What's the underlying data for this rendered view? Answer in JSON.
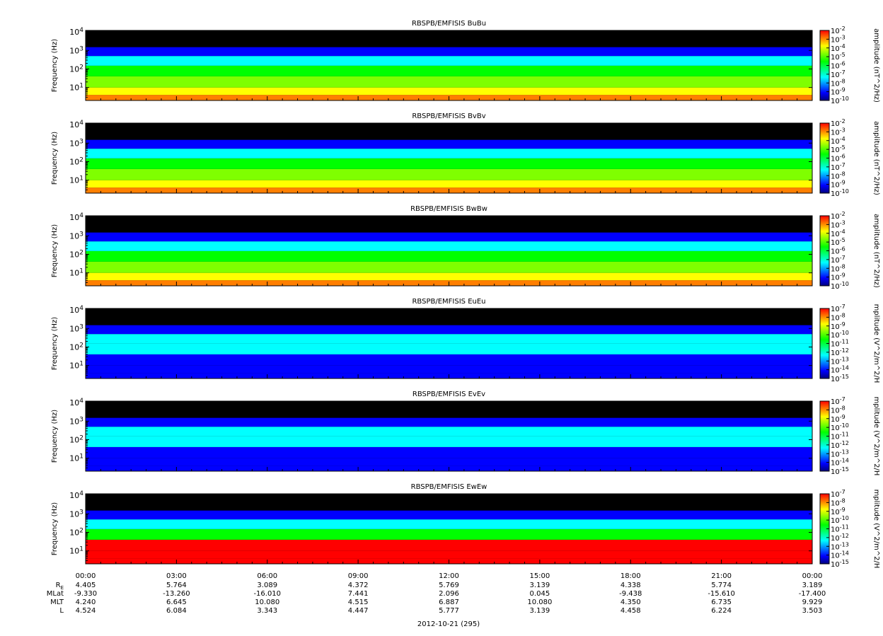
{
  "figure": {
    "date_label": "2012-10-21 (295)"
  },
  "colors": {
    "background": "#000000",
    "palette": [
      "#00007f",
      "#0000ff",
      "#007fff",
      "#00ffff",
      "#00ff7f",
      "#00ff00",
      "#7fff00",
      "#ffff00",
      "#ff7f00",
      "#ff0000"
    ]
  },
  "chart_data": [
    {
      "type": "heatmap",
      "title": "RBSPB/EMFISIS  BuBu",
      "ylabel": "Frequency (Hz)",
      "yscale": "log",
      "ylim": [
        2,
        12000
      ],
      "y_ticks": [
        {
          "label": "10",
          "exp": "1",
          "value": 10
        },
        {
          "label": "10",
          "exp": "2",
          "value": 100
        },
        {
          "label": "10",
          "exp": "3",
          "value": 1000
        },
        {
          "label": "10",
          "exp": "4",
          "value": 10000
        }
      ],
      "colorbar_label": "amplitude (nT^2/Hz)",
      "colorbar_scale": "log",
      "colorbar_range": [
        -10,
        -2
      ],
      "colorbar_ticks": [
        {
          "label": "10",
          "exp": "-2"
        },
        {
          "label": "10",
          "exp": "-3"
        },
        {
          "label": "10",
          "exp": "-4"
        },
        {
          "label": "10",
          "exp": "-5"
        },
        {
          "label": "10",
          "exp": "-6"
        },
        {
          "label": "10",
          "exp": "-7"
        },
        {
          "label": "10",
          "exp": "-8"
        },
        {
          "label": "10",
          "exp": "-9"
        },
        {
          "label": "10",
          "exp": "-10"
        }
      ]
    },
    {
      "type": "heatmap",
      "title": "RBSPB/EMFISIS  BvBv",
      "ylabel": "Frequency (Hz)",
      "yscale": "log",
      "ylim": [
        2,
        12000
      ],
      "y_ticks": [
        {
          "label": "10",
          "exp": "1",
          "value": 10
        },
        {
          "label": "10",
          "exp": "2",
          "value": 100
        },
        {
          "label": "10",
          "exp": "3",
          "value": 1000
        },
        {
          "label": "10",
          "exp": "4",
          "value": 10000
        }
      ],
      "colorbar_label": "amplitude (nT^2/Hz)",
      "colorbar_scale": "log",
      "colorbar_range": [
        -10,
        -2
      ],
      "colorbar_ticks": [
        {
          "label": "10",
          "exp": "-2"
        },
        {
          "label": "10",
          "exp": "-3"
        },
        {
          "label": "10",
          "exp": "-4"
        },
        {
          "label": "10",
          "exp": "-5"
        },
        {
          "label": "10",
          "exp": "-6"
        },
        {
          "label": "10",
          "exp": "-7"
        },
        {
          "label": "10",
          "exp": "-8"
        },
        {
          "label": "10",
          "exp": "-9"
        },
        {
          "label": "10",
          "exp": "-10"
        }
      ]
    },
    {
      "type": "heatmap",
      "title": "RBSPB/EMFISIS  BwBw",
      "ylabel": "Frequency (Hz)",
      "yscale": "log",
      "ylim": [
        2,
        12000
      ],
      "y_ticks": [
        {
          "label": "10",
          "exp": "1",
          "value": 10
        },
        {
          "label": "10",
          "exp": "2",
          "value": 100
        },
        {
          "label": "10",
          "exp": "3",
          "value": 1000
        },
        {
          "label": "10",
          "exp": "4",
          "value": 10000
        }
      ],
      "colorbar_label": "amplitude (nT^2/Hz)",
      "colorbar_scale": "log",
      "colorbar_range": [
        -10,
        -2
      ],
      "colorbar_ticks": [
        {
          "label": "10",
          "exp": "-2"
        },
        {
          "label": "10",
          "exp": "-3"
        },
        {
          "label": "10",
          "exp": "-4"
        },
        {
          "label": "10",
          "exp": "-5"
        },
        {
          "label": "10",
          "exp": "-6"
        },
        {
          "label": "10",
          "exp": "-7"
        },
        {
          "label": "10",
          "exp": "-8"
        },
        {
          "label": "10",
          "exp": "-9"
        },
        {
          "label": "10",
          "exp": "-10"
        }
      ]
    },
    {
      "type": "heatmap",
      "title": "RBSPB/EMFISIS  EuEu",
      "ylabel": "Frequency (Hz)",
      "yscale": "log",
      "ylim": [
        2,
        12000
      ],
      "y_ticks": [
        {
          "label": "10",
          "exp": "1",
          "value": 10
        },
        {
          "label": "10",
          "exp": "2",
          "value": 100
        },
        {
          "label": "10",
          "exp": "3",
          "value": 1000
        },
        {
          "label": "10",
          "exp": "4",
          "value": 10000
        }
      ],
      "colorbar_label": "mplitude (V^2/m^2/H",
      "colorbar_scale": "log",
      "colorbar_range": [
        -15,
        -7
      ],
      "colorbar_ticks": [
        {
          "label": "10",
          "exp": "-7"
        },
        {
          "label": "10",
          "exp": "-8"
        },
        {
          "label": "10",
          "exp": "-9"
        },
        {
          "label": "10",
          "exp": "-10"
        },
        {
          "label": "10",
          "exp": "-11"
        },
        {
          "label": "10",
          "exp": "-12"
        },
        {
          "label": "10",
          "exp": "-13"
        },
        {
          "label": "10",
          "exp": "-14"
        },
        {
          "label": "10",
          "exp": "-15"
        }
      ]
    },
    {
      "type": "heatmap",
      "title": "RBSPB/EMFISIS  EvEv",
      "ylabel": "Frequency (Hz)",
      "yscale": "log",
      "ylim": [
        2,
        12000
      ],
      "y_ticks": [
        {
          "label": "10",
          "exp": "1",
          "value": 10
        },
        {
          "label": "10",
          "exp": "2",
          "value": 100
        },
        {
          "label": "10",
          "exp": "3",
          "value": 1000
        },
        {
          "label": "10",
          "exp": "4",
          "value": 10000
        }
      ],
      "colorbar_label": "mplitude (V^2/m^2/H",
      "colorbar_scale": "log",
      "colorbar_range": [
        -15,
        -7
      ],
      "colorbar_ticks": [
        {
          "label": "10",
          "exp": "-7"
        },
        {
          "label": "10",
          "exp": "-8"
        },
        {
          "label": "10",
          "exp": "-9"
        },
        {
          "label": "10",
          "exp": "-10"
        },
        {
          "label": "10",
          "exp": "-11"
        },
        {
          "label": "10",
          "exp": "-12"
        },
        {
          "label": "10",
          "exp": "-13"
        },
        {
          "label": "10",
          "exp": "-14"
        },
        {
          "label": "10",
          "exp": "-15"
        }
      ]
    },
    {
      "type": "heatmap",
      "title": "RBSPB/EMFISIS  EwEw",
      "ylabel": "Frequency (Hz)",
      "yscale": "log",
      "ylim": [
        2,
        12000
      ],
      "y_ticks": [
        {
          "label": "10",
          "exp": "1",
          "value": 10
        },
        {
          "label": "10",
          "exp": "2",
          "value": 100
        },
        {
          "label": "10",
          "exp": "3",
          "value": 1000
        },
        {
          "label": "10",
          "exp": "4",
          "value": 10000
        }
      ],
      "colorbar_label": "mplitude (V^2/m^2/H",
      "colorbar_scale": "log",
      "colorbar_range": [
        -15,
        -7
      ],
      "colorbar_ticks": [
        {
          "label": "10",
          "exp": "-7"
        },
        {
          "label": "10",
          "exp": "-8"
        },
        {
          "label": "10",
          "exp": "-9"
        },
        {
          "label": "10",
          "exp": "-10"
        },
        {
          "label": "10",
          "exp": "-11"
        },
        {
          "label": "10",
          "exp": "-12"
        },
        {
          "label": "10",
          "exp": "-13"
        },
        {
          "label": "10",
          "exp": "-14"
        },
        {
          "label": "10",
          "exp": "-15"
        }
      ]
    }
  ],
  "x_axis": {
    "tick_labels": [
      "00:00",
      "03:00",
      "06:00",
      "09:00",
      "12:00",
      "15:00",
      "18:00",
      "21:00",
      "00:00"
    ],
    "xlim_hours": [
      0,
      24
    ],
    "ephemeris": [
      {
        "name": "R",
        "sub": "E",
        "values": [
          "4.405",
          "5.764",
          "3.089",
          "4.372",
          "5.769",
          "3.139",
          "4.338",
          "5.774",
          "3.189"
        ]
      },
      {
        "name": "MLat",
        "sub": "",
        "values": [
          "-9.330",
          "-13.260",
          "-16.010",
          "7.441",
          "2.096",
          "0.045",
          "-9.438",
          "-15.610",
          "-17.400"
        ]
      },
      {
        "name": "MLT",
        "sub": "",
        "values": [
          "4.240",
          "6.645",
          "10.080",
          "4.515",
          "6.887",
          "10.080",
          "4.350",
          "6.735",
          "9.929"
        ]
      },
      {
        "name": "L",
        "sub": "",
        "values": [
          "4.524",
          "6.084",
          "3.343",
          "4.447",
          "5.777",
          "3.139",
          "4.458",
          "6.224",
          "3.503"
        ]
      }
    ]
  }
}
